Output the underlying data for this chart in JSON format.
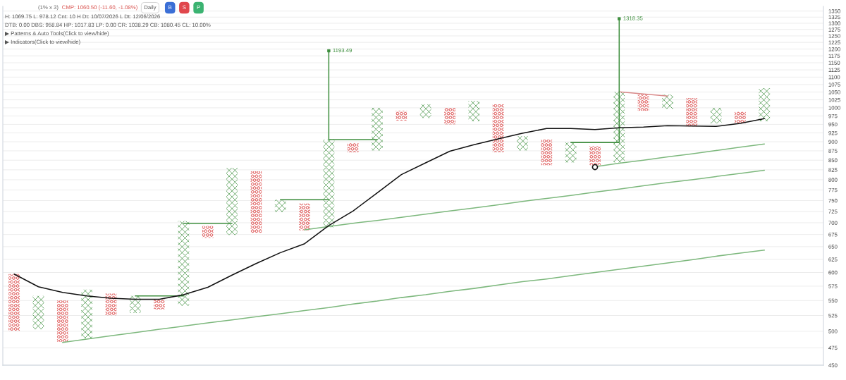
{
  "chart_data": {
    "type": "bar",
    "title": "(1% x 3)",
    "subtitle": "CMP: 1060.50 (-11.60, -1.08%)",
    "annotations": [
      "Daily",
      "B",
      "S",
      "P",
      "H: 1069.75 L: 978.12 Cnt: 10 H Dt: 10/07/2026 L Dt: 12/06/2026",
      "DTB: 0.00 DBS: 958.84 HP: 1017.83 LP: 0.00 CR: 1038.29 CB: 1080.45 CL: 10.00%",
      "▶ Patterns & Auto Tools(Click to view/hide)",
      "▶ Indicators(Click to view/hide)"
    ],
    "categories": [
      null,
      null,
      null,
      null,
      null,
      null,
      null,
      null,
      null,
      null,
      null,
      null,
      null,
      null,
      null,
      null,
      null,
      null,
      null,
      null,
      null,
      null,
      null,
      null,
      null,
      null,
      null,
      null,
      null,
      null,
      null,
      null,
      null,
      null
    ],
    "series": [
      {
        "type": "bar",
        "color": "#e06060",
        "marker": "circle",
        "base": [
          500,
          null,
          484,
          null,
          525,
          null,
          535,
          null,
          668,
          null,
          678,
          null,
          684,
          null,
          871,
          null,
          961,
          null,
          950,
          null,
          871,
          null,
          837,
          null,
          837,
          null,
          991,
          null,
          944,
          null,
          953,
          null,
          null,
          null
        ],
        "values": [
          97,
          null,
          66,
          null,
          37,
          null,
          17,
          null,
          25,
          null,
          143,
          null,
          59,
          null,
          25,
          null,
          30,
          null,
          50,
          null,
          140,
          null,
          69,
          null,
          51,
          null,
          51,
          null,
          87,
          null,
          36,
          null,
          null,
          null
        ]
      },
      {
        "color": "#4f9a4f",
        "marker": "cross",
        "base": [
          null,
          503,
          null,
          489,
          null,
          529,
          null,
          541,
          null,
          674,
          null,
          724,
          null,
          690,
          null,
          876,
          null,
          969,
          null,
          959,
          null,
          876,
          null,
          844,
          null,
          844,
          null,
          997,
          null,
          953,
          null,
          959,
          null,
          null
        ],
        "values": [
          null,
          55,
          null,
          80,
          null,
          29,
          null,
          163,
          null,
          156,
          null,
          28,
          null,
          216,
          null,
          124,
          null,
          42,
          null,
          63,
          null,
          40,
          null,
          54,
          null,
          207,
          null,
          45,
          null,
          47,
          null,
          104,
          null,
          null
        ]
      },
      {
        "type": "line",
        "color": "#7db87d",
        "values": [
          null,
          null,
          483,
          488,
          493,
          498,
          503,
          508,
          513,
          518,
          523,
          528,
          533,
          538,
          544,
          549,
          555,
          560,
          566,
          571,
          577,
          583,
          588,
          594,
          600,
          606,
          612,
          618,
          624,
          631,
          637,
          643,
          null,
          null
        ]
      },
      {
        "type": "line",
        "color": "#7db87d",
        "values": [
          null,
          null,
          null,
          null,
          null,
          null,
          null,
          null,
          null,
          null,
          null,
          null,
          685,
          692,
          699,
          705,
          712,
          719,
          726,
          733,
          740,
          748,
          755,
          762,
          770,
          777,
          785,
          793,
          800,
          808,
          816,
          824,
          null,
          null
        ]
      },
      {
        "type": "line",
        "color": "#7db87d",
        "values": [
          null,
          null,
          null,
          null,
          null,
          null,
          null,
          null,
          null,
          null,
          null,
          null,
          null,
          null,
          null,
          null,
          null,
          null,
          null,
          null,
          null,
          null,
          null,
          null,
          833,
          842,
          850,
          859,
          867,
          876,
          885,
          894,
          null,
          null
        ]
      },
      {
        "type": "line",
        "color": "#d98a8a",
        "values": [
          null,
          null,
          null,
          null,
          null,
          null,
          null,
          null,
          null,
          null,
          null,
          null,
          null,
          null,
          null,
          null,
          null,
          null,
          null,
          null,
          null,
          null,
          null,
          null,
          null,
          1051,
          1044,
          1037,
          null,
          null,
          null,
          null,
          null,
          null
        ]
      },
      {
        "type": "line",
        "color": "#3f8f3f",
        "values": [
          null,
          null,
          null,
          null,
          null,
          558,
          558,
          558,
          null,
          null,
          null,
          null,
          null,
          906,
          906,
          906,
          null,
          null,
          null,
          null,
          null,
          null,
          null,
          898,
          898,
          898,
          null,
          null,
          null,
          null,
          null,
          null,
          null,
          null
        ]
      },
      {
        "type": "line",
        "color": "#3f8f3f",
        "values": [
          null,
          null,
          null,
          null,
          null,
          null,
          null,
          699,
          699,
          699,
          null,
          752,
          752,
          752,
          null,
          null,
          null,
          null,
          null,
          null,
          null,
          null,
          null,
          null,
          null,
          null,
          null,
          null,
          null,
          null,
          null,
          null,
          null,
          null
        ]
      },
      {
        "type": "scatter",
        "color": "#3f8f3f",
        "marker": "square",
        "values": [
          null,
          null,
          null,
          null,
          null,
          null,
          null,
          null,
          null,
          null,
          null,
          null,
          null,
          1193.49,
          null,
          null,
          null,
          null,
          null,
          null,
          null,
          null,
          null,
          null,
          null,
          1318.35,
          null,
          null,
          null,
          null,
          null,
          null,
          null,
          null
        ],
        "errors": [
          null,
          null,
          null,
          null,
          null,
          null,
          null,
          null,
          null,
          null,
          null,
          null,
          null,
          [
            906,
            1193.49
          ],
          null,
          null,
          null,
          null,
          null,
          null,
          null,
          null,
          null,
          null,
          null,
          [
            898,
            1318.35
          ],
          null,
          null,
          null,
          null,
          null,
          null,
          null,
          null
        ],
        "value_labels": [
          null,
          null,
          null,
          null,
          null,
          null,
          null,
          null,
          null,
          null,
          null,
          null,
          null,
          "1193.49",
          null,
          null,
          null,
          null,
          null,
          null,
          null,
          null,
          null,
          null,
          null,
          "1318.35",
          null,
          null,
          null,
          null,
          null,
          null,
          null,
          null
        ]
      },
      {
        "type": "line",
        "color": "#111111",
        "values": [
          597,
          574,
          564,
          558,
          554,
          552,
          552,
          560,
          573,
          595,
          617,
          638,
          656,
          694,
          726,
          768,
          813,
          843,
          874,
          892,
          908,
          924,
          938,
          938,
          935,
          940,
          942,
          946,
          945,
          944,
          953,
          967,
          null,
          null
        ]
      },
      {
        "type": "scatter",
        "color": "#111111",
        "marker": "circle",
        "values": [
          null,
          null,
          null,
          null,
          null,
          null,
          null,
          null,
          null,
          null,
          null,
          null,
          null,
          null,
          null,
          null,
          null,
          null,
          null,
          null,
          null,
          null,
          null,
          null,
          832,
          null,
          null,
          null,
          null,
          null,
          null,
          null,
          null,
          null
        ]
      }
    ],
    "log": true,
    "ylim": [
      450,
      1370
    ],
    "yticks": [
      450,
      475,
      500,
      525,
      550,
      575,
      600,
      625,
      650,
      675,
      700,
      725,
      750,
      775,
      800,
      825,
      850,
      875,
      900,
      925,
      950,
      975,
      1000,
      1025,
      1050,
      1075,
      1100,
      1125,
      1150,
      1175,
      1200,
      1225,
      1250,
      1275,
      1300,
      1325,
      1350
    ],
    "grid": "y",
    "tick_labels": "y"
  }
}
